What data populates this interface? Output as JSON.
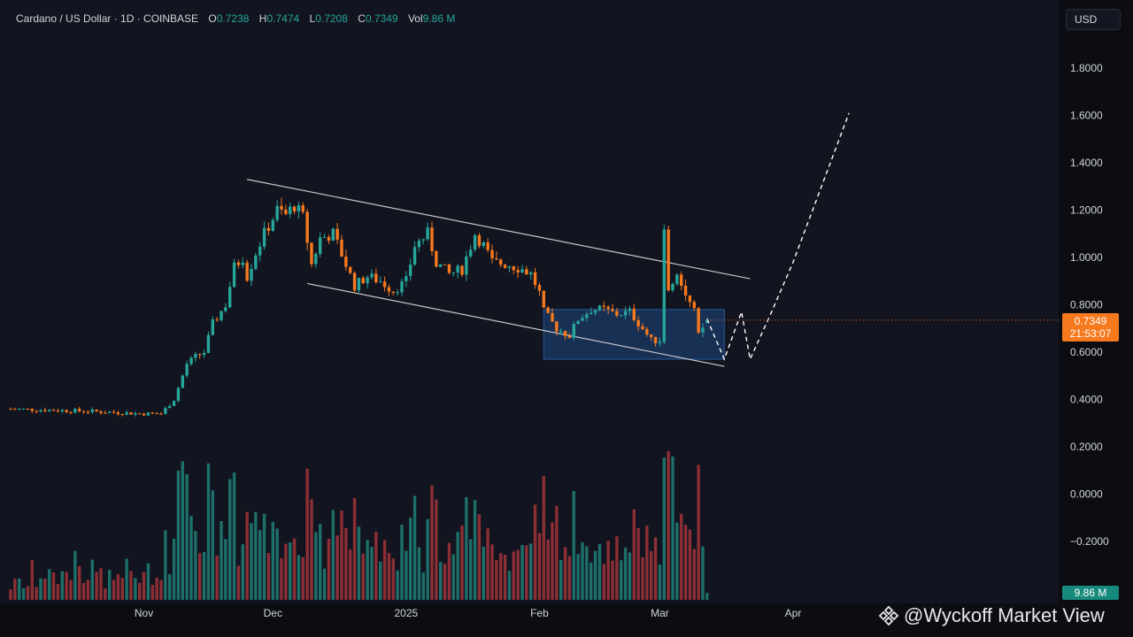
{
  "header": {
    "symbol_line": "Cardano / US Dollar · 1D · COINBASE",
    "open_label": "O",
    "open": "0.7238",
    "high_label": "H",
    "high": "0.7474",
    "low_label": "L",
    "low": "0.7208",
    "close_label": "C",
    "close": "0.7349",
    "vol_label": "Vol",
    "vol": "9.86 M"
  },
  "currency_button": "USD",
  "price_badge": {
    "price": "0.7349",
    "countdown": "21:53:07"
  },
  "volume_badge": "9.86 M",
  "watermark": "@Wyckoff Market View",
  "colors": {
    "up": "#26a69a",
    "down": "#f6791e",
    "up_volume": "#1d6f69",
    "down_volume": "#8c2f35",
    "channel": "#c8c8c8",
    "zone": "#1b3a66"
  },
  "chart_data": {
    "type": "candlestick",
    "x_axis": [
      "Nov",
      "Dec",
      "2025",
      "Feb",
      "Mar",
      "Apr"
    ],
    "y_ticks": [
      "1.8000",
      "1.6000",
      "1.4000",
      "1.2000",
      "1.0000",
      "0.8000",
      "0.6000",
      "0.4000",
      "0.2000",
      "0.0000",
      "−0.2000"
    ],
    "ylim": [
      -0.3,
      2.0
    ],
    "price_path": [
      [
        "2024-10-01",
        0.36
      ],
      [
        "2024-10-20",
        0.35
      ],
      [
        "2024-10-31",
        0.34
      ],
      [
        "2024-11-05",
        0.34
      ],
      [
        "2024-11-08",
        0.4
      ],
      [
        "2024-11-11",
        0.55
      ],
      [
        "2024-11-13",
        0.58
      ],
      [
        "2024-11-15",
        0.6
      ],
      [
        "2024-11-17",
        0.72
      ],
      [
        "2024-11-20",
        0.8
      ],
      [
        "2024-11-22",
        0.96
      ],
      [
        "2024-11-24",
        1.0
      ],
      [
        "2024-11-25",
        0.92
      ],
      [
        "2024-11-27",
        1.02
      ],
      [
        "2024-11-29",
        1.1
      ],
      [
        "2024-12-02",
        1.2
      ],
      [
        "2024-12-04",
        1.18
      ],
      [
        "2024-12-06",
        1.22
      ],
      [
        "2024-12-08",
        1.17
      ],
      [
        "2024-12-10",
        0.97
      ],
      [
        "2024-12-12",
        1.08
      ],
      [
        "2024-12-15",
        1.1
      ],
      [
        "2024-12-18",
        0.97
      ],
      [
        "2024-12-20",
        0.88
      ],
      [
        "2024-12-23",
        0.92
      ],
      [
        "2024-12-26",
        0.9
      ],
      [
        "2024-12-29",
        0.86
      ],
      [
        "2025-01-01",
        0.9
      ],
      [
        "2025-01-03",
        1.05
      ],
      [
        "2025-01-06",
        1.1
      ],
      [
        "2025-01-08",
        0.98
      ],
      [
        "2025-01-11",
        0.93
      ],
      [
        "2025-01-14",
        0.95
      ],
      [
        "2025-01-17",
        1.1
      ],
      [
        "2025-01-19",
        1.05
      ],
      [
        "2025-01-21",
        0.98
      ],
      [
        "2025-01-25",
        0.97
      ],
      [
        "2025-01-28",
        0.95
      ],
      [
        "2025-01-30",
        0.93
      ],
      [
        "2025-02-01",
        0.85
      ],
      [
        "2025-02-02",
        0.77
      ],
      [
        "2025-02-05",
        0.7
      ],
      [
        "2025-02-08",
        0.67
      ],
      [
        "2025-02-10",
        0.74
      ],
      [
        "2025-02-13",
        0.78
      ],
      [
        "2025-02-16",
        0.78
      ],
      [
        "2025-02-19",
        0.76
      ],
      [
        "2025-02-22",
        0.77
      ],
      [
        "2025-02-25",
        0.7
      ],
      [
        "2025-02-27",
        0.65
      ],
      [
        "2025-03-01",
        0.65
      ],
      [
        "2025-03-02",
        1.13
      ],
      [
        "2025-03-03",
        0.85
      ],
      [
        "2025-03-05",
        0.95
      ],
      [
        "2025-03-07",
        0.84
      ],
      [
        "2025-03-09",
        0.77
      ],
      [
        "2025-03-10",
        0.67
      ],
      [
        "2025-03-12",
        0.7349
      ]
    ],
    "volume_pattern": [
      "low",
      "rising mid-Nov",
      "peaks early Dec",
      "moderate Dec-Jan",
      "spike early Feb",
      "largest spike early Mar"
    ]
  }
}
